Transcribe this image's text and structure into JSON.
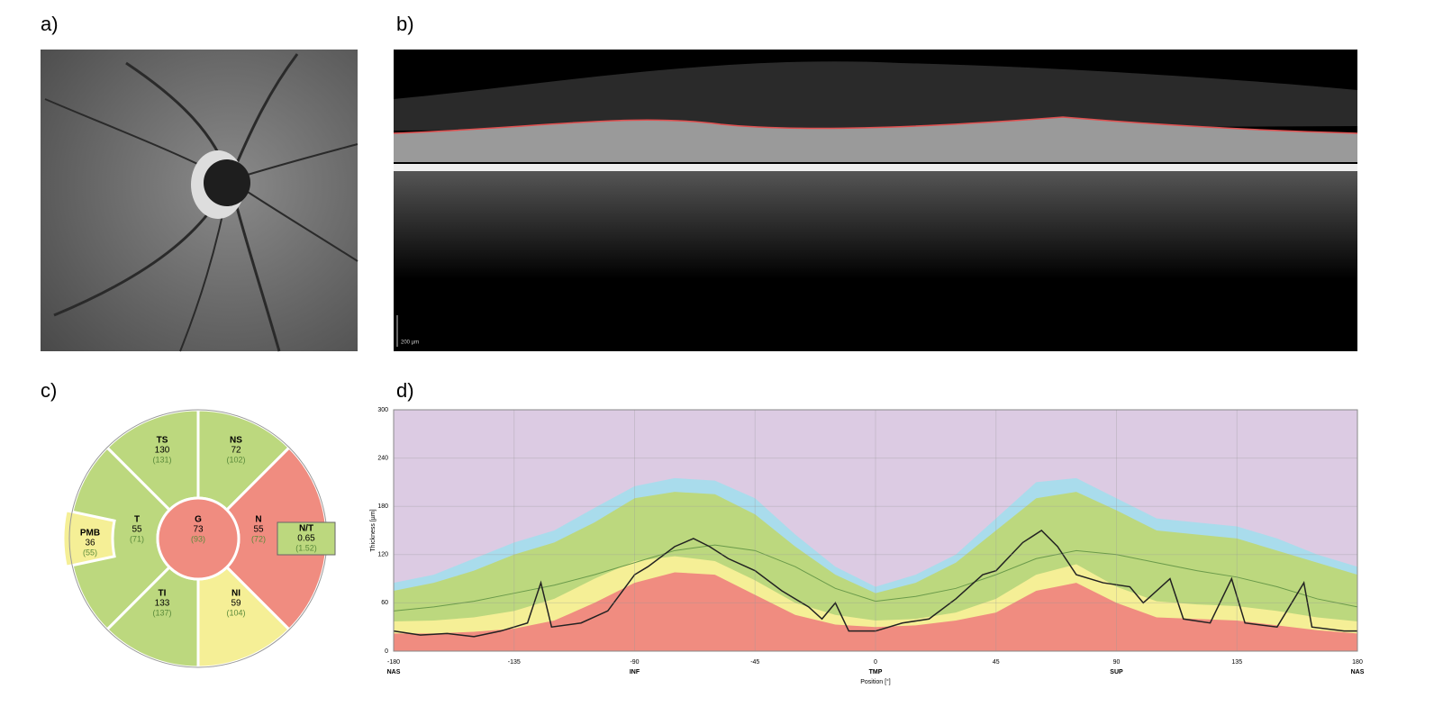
{
  "panels": {
    "a": "a)",
    "b": "b)",
    "c": "c)",
    "d": "d)"
  },
  "oct_scale": "200 µm",
  "sector_map": {
    "sectors": [
      {
        "label": "TS",
        "value": 130,
        "ref": "(131)",
        "color": "#bcd87e"
      },
      {
        "label": "NS",
        "value": 72,
        "ref": "(102)",
        "color": "#bcd87e"
      },
      {
        "label": "T",
        "value": 55,
        "ref": "(71)",
        "color": "#bcd87e"
      },
      {
        "label": "G",
        "value": 73,
        "ref": "(93)",
        "color": "#f08c80"
      },
      {
        "label": "N",
        "value": 55,
        "ref": "(72)",
        "color": "#f08c80"
      },
      {
        "label": "TI",
        "value": 133,
        "ref": "(137)",
        "color": "#bcd87e"
      },
      {
        "label": "NI",
        "value": 59,
        "ref": "(104)",
        "color": "#f5ef96"
      },
      {
        "label": "PMB",
        "value": 36,
        "ref": "(55)",
        "color": "#f5ef96"
      },
      {
        "label": "N/T",
        "value": 0.65,
        "ref": "(1.52)",
        "color": "#bcd87e"
      }
    ]
  },
  "chart_data": {
    "type": "area",
    "x_label": "Position [°]",
    "y_label": "Thickness [µm]",
    "xlim": [
      -180,
      180
    ],
    "ylim": [
      0,
      300
    ],
    "xticks": [
      -180,
      -135,
      -90,
      -45,
      0,
      45,
      90,
      135,
      180
    ],
    "yticks": [
      0,
      60,
      120,
      180,
      240,
      300
    ],
    "x_regions": [
      {
        "value": -180,
        "label": "NAS"
      },
      {
        "value": -90,
        "label": "INF"
      },
      {
        "value": 0,
        "label": "TMP"
      },
      {
        "value": 90,
        "label": "SUP"
      },
      {
        "value": 180,
        "label": "NAS"
      }
    ],
    "background": "#dccbe3",
    "grid": true,
    "x": [
      -180,
      -165,
      -150,
      -135,
      -120,
      -105,
      -90,
      -75,
      -60,
      -45,
      -30,
      -15,
      0,
      15,
      30,
      45,
      60,
      75,
      90,
      105,
      120,
      135,
      150,
      165,
      180
    ],
    "series": [
      {
        "color": "#a9dcec",
        "values": [
          85,
          95,
          115,
          135,
          150,
          178,
          205,
          215,
          212,
          190,
          145,
          105,
          80,
          95,
          120,
          165,
          210,
          215,
          190,
          165,
          160,
          155,
          140,
          120,
          105
        ]
      },
      {
        "color": "#bcd87e",
        "values": [
          75,
          85,
          100,
          120,
          135,
          160,
          190,
          198,
          195,
          170,
          130,
          95,
          72,
          85,
          110,
          150,
          190,
          198,
          175,
          150,
          145,
          140,
          125,
          110,
          95
        ]
      },
      {
        "color": "#f5ef96",
        "values": [
          37,
          38,
          42,
          50,
          65,
          90,
          112,
          118,
          112,
          88,
          60,
          45,
          38,
          40,
          48,
          65,
          95,
          108,
          80,
          62,
          58,
          56,
          50,
          42,
          37
        ]
      },
      {
        "color": "#f08c80",
        "values": [
          22,
          22,
          24,
          28,
          38,
          60,
          85,
          98,
          95,
          70,
          45,
          33,
          30,
          32,
          38,
          48,
          75,
          85,
          60,
          42,
          40,
          38,
          32,
          26,
          22
        ]
      },
      {
        "type": "line",
        "color": "#6a9a4a",
        "values": [
          50,
          55,
          62,
          72,
          82,
          95,
          110,
          125,
          132,
          125,
          105,
          78,
          62,
          68,
          78,
          95,
          115,
          125,
          120,
          110,
          100,
          92,
          80,
          65,
          55
        ]
      },
      {
        "type": "line",
        "color": "#222222",
        "x": [
          -180,
          -170,
          -160,
          -150,
          -140,
          -130,
          -125,
          -121,
          -110,
          -100,
          -90,
          -85,
          -75,
          -68,
          -62,
          -55,
          -45,
          -35,
          -25,
          -20,
          -15,
          -10,
          0,
          10,
          20,
          30,
          40,
          45,
          55,
          62,
          68,
          75,
          85,
          95,
          100,
          110,
          115,
          125,
          133,
          138,
          150,
          160,
          163,
          175,
          180
        ],
        "values": [
          25,
          20,
          22,
          18,
          25,
          35,
          85,
          30,
          35,
          50,
          95,
          105,
          130,
          140,
          130,
          115,
          100,
          75,
          55,
          40,
          60,
          25,
          25,
          35,
          40,
          65,
          95,
          100,
          135,
          150,
          130,
          95,
          85,
          80,
          60,
          90,
          40,
          35,
          90,
          35,
          30,
          85,
          30,
          25,
          25
        ]
      }
    ]
  }
}
